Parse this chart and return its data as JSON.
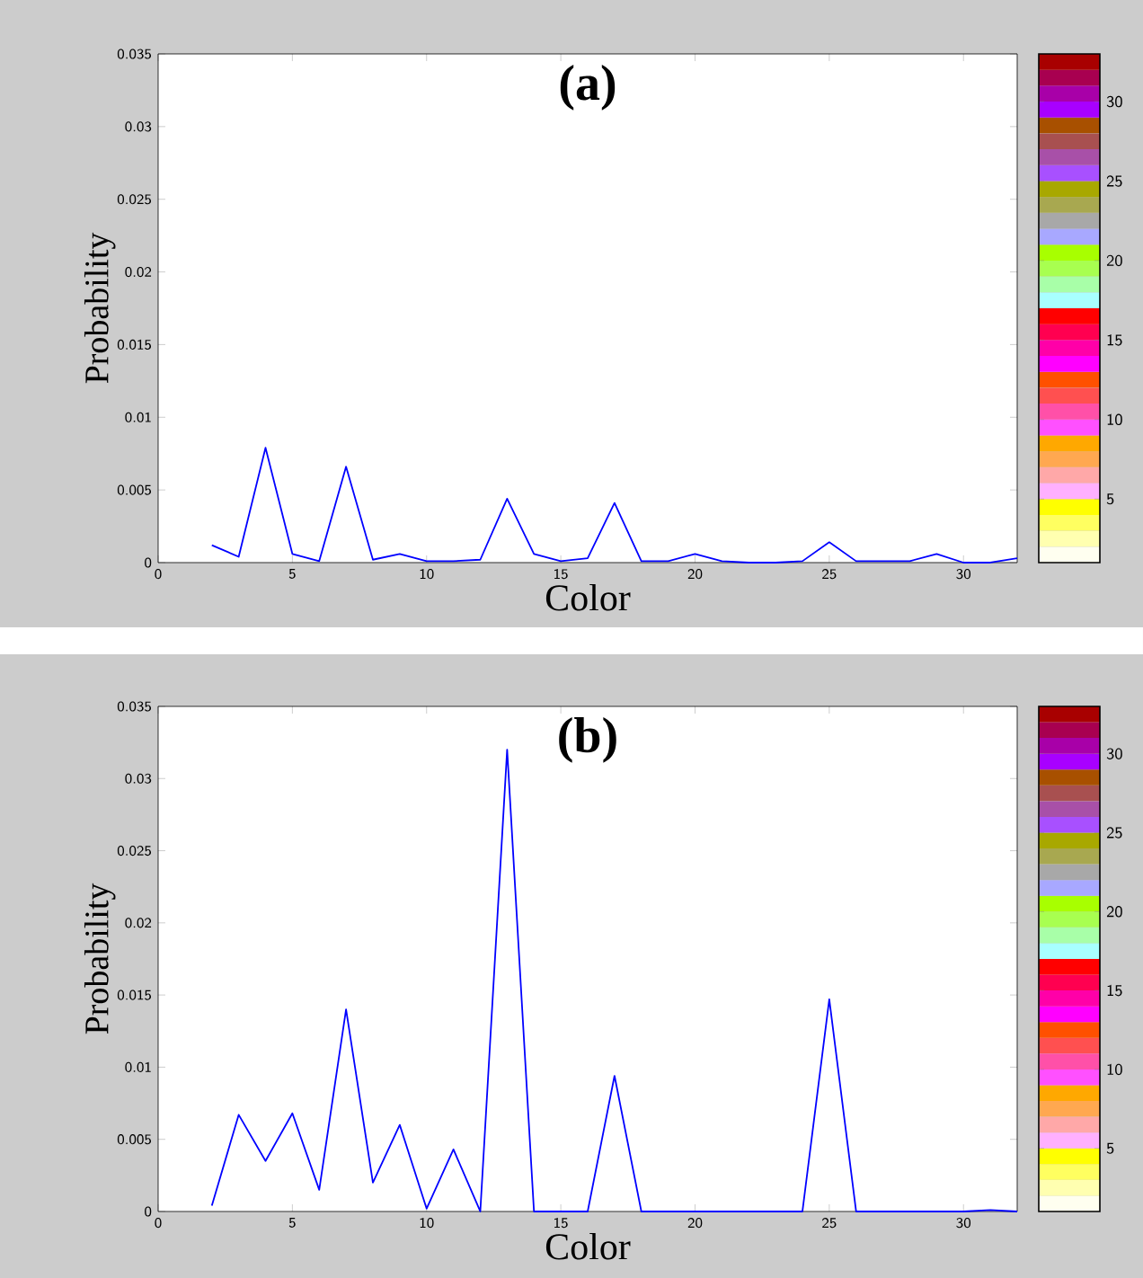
{
  "chart_data": [
    {
      "type": "line",
      "title": "(a)",
      "xlabel": "Color",
      "ylabel": "Probability",
      "color": "#0000ff",
      "x": [
        2,
        3,
        4,
        5,
        6,
        7,
        8,
        9,
        10,
        11,
        12,
        13,
        14,
        15,
        16,
        17,
        18,
        19,
        20,
        21,
        22,
        23,
        24,
        25,
        26,
        27,
        28,
        29,
        30,
        31,
        32
      ],
      "values": [
        0.0012,
        0.0004,
        0.0079,
        0.0006,
        0.0001,
        0.0066,
        0.0002,
        0.0006,
        0.0001,
        0.0001,
        0.0002,
        0.0044,
        0.0006,
        0.0001,
        0.0003,
        0.0041,
        0.0001,
        0.0001,
        0.0006,
        0.0001,
        0,
        0,
        0.0001,
        0.0014,
        0.0001,
        0.0001,
        0.0001,
        0.0006,
        0,
        0,
        0.0003
      ],
      "xlim": [
        0,
        32
      ],
      "xticks": [
        0,
        5,
        10,
        15,
        20,
        25,
        30
      ],
      "ylim": [
        0,
        0.035
      ],
      "yticks": [
        0,
        0.005,
        0.01,
        0.015,
        0.02,
        0.025,
        0.03,
        0.035
      ]
    },
    {
      "type": "bar",
      "categories": [
        null
      ],
      "ylim": [
        1,
        33
      ],
      "yticks": [
        5,
        10,
        15,
        20,
        25,
        30
      ],
      "tick_labels": "y",
      "series": [
        {
          "color": "#fffff0",
          "base": [
            1
          ],
          "values": [
            1
          ]
        },
        {
          "color": "#ffffb0",
          "base": [
            2
          ],
          "values": [
            1
          ]
        },
        {
          "color": "#ffff60",
          "base": [
            3
          ],
          "values": [
            1
          ]
        },
        {
          "color": "#ffff00",
          "base": [
            4
          ],
          "values": [
            1
          ]
        },
        {
          "color": "#ffb0ff",
          "base": [
            5
          ],
          "values": [
            1
          ]
        },
        {
          "color": "#ffa8a8",
          "base": [
            6
          ],
          "values": [
            1
          ]
        },
        {
          "color": "#ffa850",
          "base": [
            7
          ],
          "values": [
            1
          ]
        },
        {
          "color": "#ffa800",
          "base": [
            8
          ],
          "values": [
            1
          ]
        },
        {
          "color": "#ff50ff",
          "base": [
            9
          ],
          "values": [
            1
          ]
        },
        {
          "color": "#ff50a8",
          "base": [
            10
          ],
          "values": [
            1
          ]
        },
        {
          "color": "#ff5050",
          "base": [
            11
          ],
          "values": [
            1
          ]
        },
        {
          "color": "#ff5000",
          "base": [
            12
          ],
          "values": [
            1
          ]
        },
        {
          "color": "#ff00ff",
          "base": [
            13
          ],
          "values": [
            1
          ]
        },
        {
          "color": "#ff00a8",
          "base": [
            14
          ],
          "values": [
            1
          ]
        },
        {
          "color": "#ff0050",
          "base": [
            15
          ],
          "values": [
            1
          ]
        },
        {
          "color": "#ff0000",
          "base": [
            16
          ],
          "values": [
            1
          ]
        },
        {
          "color": "#a8ffff",
          "base": [
            17
          ],
          "values": [
            1
          ]
        },
        {
          "color": "#a8ffa8",
          "base": [
            18
          ],
          "values": [
            1
          ]
        },
        {
          "color": "#a8ff50",
          "base": [
            19
          ],
          "values": [
            1
          ]
        },
        {
          "color": "#a8ff00",
          "base": [
            20
          ],
          "values": [
            1
          ]
        },
        {
          "color": "#a8a8ff",
          "base": [
            21
          ],
          "values": [
            1
          ]
        },
        {
          "color": "#a8a8a8",
          "base": [
            22
          ],
          "values": [
            1
          ]
        },
        {
          "color": "#a8a850",
          "base": [
            23
          ],
          "values": [
            1
          ]
        },
        {
          "color": "#a8a800",
          "base": [
            24
          ],
          "values": [
            1
          ]
        },
        {
          "color": "#a850ff",
          "base": [
            25
          ],
          "values": [
            1
          ]
        },
        {
          "color": "#a850a8",
          "base": [
            26
          ],
          "values": [
            1
          ]
        },
        {
          "color": "#a85050",
          "base": [
            27
          ],
          "values": [
            1
          ]
        },
        {
          "color": "#a85000",
          "base": [
            28
          ],
          "values": [
            1
          ]
        },
        {
          "color": "#a800ff",
          "base": [
            29
          ],
          "values": [
            1
          ]
        },
        {
          "color": "#a800a8",
          "base": [
            30
          ],
          "values": [
            1
          ]
        },
        {
          "color": "#a80050",
          "base": [
            31
          ],
          "values": [
            1
          ]
        },
        {
          "color": "#a80000",
          "base": [
            32
          ],
          "values": [
            1
          ]
        }
      ]
    },
    {
      "type": "line",
      "title": "(b)",
      "xlabel": "Color",
      "ylabel": "Probability",
      "color": "#0000ff",
      "x": [
        2,
        3,
        4,
        5,
        6,
        7,
        8,
        9,
        10,
        11,
        12,
        13,
        14,
        15,
        16,
        17,
        18,
        19,
        20,
        21,
        22,
        23,
        24,
        25,
        26,
        27,
        28,
        29,
        30,
        31,
        32
      ],
      "values": [
        0.0004,
        0.0067,
        0.0035,
        0.0068,
        0.0015,
        0.014,
        0.002,
        0.006,
        0.0002,
        0.0043,
        0,
        0.032,
        0,
        0,
        0,
        0.0094,
        0,
        0,
        0,
        0,
        0,
        0,
        0,
        0.0147,
        0,
        0,
        0,
        0,
        0,
        0.0001,
        0
      ],
      "xlim": [
        0,
        32
      ],
      "xticks": [
        0,
        5,
        10,
        15,
        20,
        25,
        30
      ],
      "ylim": [
        0,
        0.035
      ],
      "yticks": [
        0,
        0.005,
        0.01,
        0.015,
        0.02,
        0.025,
        0.03,
        0.035
      ]
    },
    {
      "type": "bar",
      "categories": [
        null
      ],
      "ylim": [
        1,
        33
      ],
      "yticks": [
        5,
        10,
        15,
        20,
        25,
        30
      ],
      "tick_labels": "y",
      "series": [
        {
          "color": "#fffff0",
          "base": [
            1
          ],
          "values": [
            1
          ]
        },
        {
          "color": "#ffffb0",
          "base": [
            2
          ],
          "values": [
            1
          ]
        },
        {
          "color": "#ffff60",
          "base": [
            3
          ],
          "values": [
            1
          ]
        },
        {
          "color": "#ffff00",
          "base": [
            4
          ],
          "values": [
            1
          ]
        },
        {
          "color": "#ffb0ff",
          "base": [
            5
          ],
          "values": [
            1
          ]
        },
        {
          "color": "#ffa8a8",
          "base": [
            6
          ],
          "values": [
            1
          ]
        },
        {
          "color": "#ffa850",
          "base": [
            7
          ],
          "values": [
            1
          ]
        },
        {
          "color": "#ffa800",
          "base": [
            8
          ],
          "values": [
            1
          ]
        },
        {
          "color": "#ff50ff",
          "base": [
            9
          ],
          "values": [
            1
          ]
        },
        {
          "color": "#ff50a8",
          "base": [
            10
          ],
          "values": [
            1
          ]
        },
        {
          "color": "#ff5050",
          "base": [
            11
          ],
          "values": [
            1
          ]
        },
        {
          "color": "#ff5000",
          "base": [
            12
          ],
          "values": [
            1
          ]
        },
        {
          "color": "#ff00ff",
          "base": [
            13
          ],
          "values": [
            1
          ]
        },
        {
          "color": "#ff00a8",
          "base": [
            14
          ],
          "values": [
            1
          ]
        },
        {
          "color": "#ff0050",
          "base": [
            15
          ],
          "values": [
            1
          ]
        },
        {
          "color": "#ff0000",
          "base": [
            16
          ],
          "values": [
            1
          ]
        },
        {
          "color": "#a8ffff",
          "base": [
            17
          ],
          "values": [
            1
          ]
        },
        {
          "color": "#a8ffa8",
          "base": [
            18
          ],
          "values": [
            1
          ]
        },
        {
          "color": "#a8ff50",
          "base": [
            19
          ],
          "values": [
            1
          ]
        },
        {
          "color": "#a8ff00",
          "base": [
            20
          ],
          "values": [
            1
          ]
        },
        {
          "color": "#a8a8ff",
          "base": [
            21
          ],
          "values": [
            1
          ]
        },
        {
          "color": "#a8a8a8",
          "base": [
            22
          ],
          "values": [
            1
          ]
        },
        {
          "color": "#a8a850",
          "base": [
            23
          ],
          "values": [
            1
          ]
        },
        {
          "color": "#a8a800",
          "base": [
            24
          ],
          "values": [
            1
          ]
        },
        {
          "color": "#a850ff",
          "base": [
            25
          ],
          "values": [
            1
          ]
        },
        {
          "color": "#a850a8",
          "base": [
            26
          ],
          "values": [
            1
          ]
        },
        {
          "color": "#a85050",
          "base": [
            27
          ],
          "values": [
            1
          ]
        },
        {
          "color": "#a85000",
          "base": [
            28
          ],
          "values": [
            1
          ]
        },
        {
          "color": "#a800ff",
          "base": [
            29
          ],
          "values": [
            1
          ]
        },
        {
          "color": "#a800a8",
          "base": [
            30
          ],
          "values": [
            1
          ]
        },
        {
          "color": "#a80050",
          "base": [
            31
          ],
          "values": [
            1
          ]
        },
        {
          "color": "#a80000",
          "base": [
            32
          ],
          "values": [
            1
          ]
        }
      ]
    }
  ]
}
